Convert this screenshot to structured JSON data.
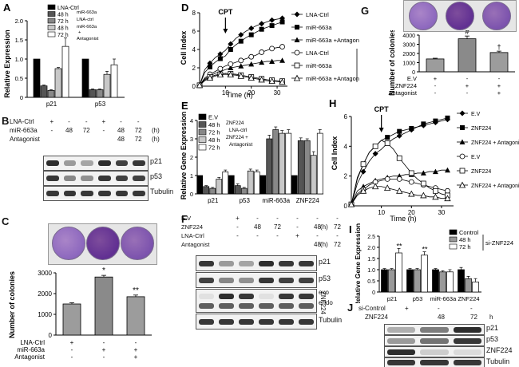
{
  "figure": {
    "panelA": {
      "letter": "A",
      "legend": [
        "LNA-Ctrl",
        "48 h",
        "72 h",
        "48 h",
        "72 h"
      ],
      "legend_notes": [
        "miR-663a",
        "LNA-ctrl",
        "miR-663a",
        "+",
        "Antagonist"
      ],
      "chart_data": {
        "type": "bar",
        "title": "",
        "ylabel": "Relative Expression",
        "xlabel": "",
        "categories": [
          "p21",
          "p53"
        ],
        "ylim": [
          0,
          2.0
        ],
        "yticks": [
          "0",
          "0.5",
          "1.0",
          "1.5",
          "2.0"
        ],
        "series": [
          {
            "name": "LNA-Ctrl",
            "values": [
              1.0,
              1.0
            ],
            "errors": [
              0,
              0
            ]
          },
          {
            "name": "48 h miR-663a",
            "values": [
              0.3,
              0.2
            ],
            "errors": [
              0.02,
              0.02
            ]
          },
          {
            "name": "72 h miR-663a",
            "values": [
              0.18,
              0.2
            ],
            "errors": [
              0.02,
              0.02
            ]
          },
          {
            "name": "48 h LNA-ctrl + miR-663a Antagonist",
            "values": [
              0.75,
              0.6
            ],
            "errors": [
              0.03,
              0.08
            ]
          },
          {
            "name": "72 h Antagonist",
            "values": [
              1.33,
              0.85
            ],
            "errors": [
              0.22,
              0.15
            ]
          }
        ],
        "colors": [
          "#000000",
          "#555555",
          "#888888",
          "#c8c8c8",
          "#ffffff"
        ]
      }
    },
    "panelB": {
      "letter": "B",
      "row_labels": [
        "LNA-Ctrl",
        "miR-663a",
        "Antagonist"
      ],
      "row_values": [
        [
          "+",
          "-",
          "-",
          "+",
          "-",
          "-"
        ],
        [
          "-",
          "48",
          "72",
          "-",
          "48",
          "72"
        ],
        [
          "",
          "",
          "",
          "",
          "48",
          "72"
        ]
      ],
      "units": [
        "(h)",
        "(h)"
      ],
      "band_labels": [
        "p21",
        "p53",
        "Tubulin"
      ],
      "p21_intensity": [
        0.95,
        0.4,
        0.35,
        0.95,
        0.85,
        0.9
      ],
      "p53_intensity": [
        0.9,
        0.5,
        0.45,
        0.9,
        0.85,
        0.85
      ],
      "tubulin_intensity": [
        0.9,
        0.9,
        0.9,
        0.9,
        0.9,
        0.9
      ]
    },
    "panelC": {
      "letter": "C",
      "plate_density": [
        0.55,
        0.95,
        0.7
      ],
      "stars": [
        "*",
        "**"
      ],
      "treatments": [
        [
          "LNA-Ctrl",
          "+",
          "-",
          "-"
        ],
        [
          "miR-663a",
          "-",
          "+",
          "+"
        ],
        [
          "Antagonist",
          "-",
          "-",
          "+"
        ]
      ],
      "chart_data": {
        "type": "bar",
        "ylabel": "Number of colonies",
        "categories": [
          "LNA-Ctrl",
          "miR-663a",
          "miR-663a + Antagonist"
        ],
        "values": [
          1500,
          2800,
          1850
        ],
        "errors": [
          60,
          80,
          80
        ],
        "ylim": [
          0,
          3000
        ],
        "yticks": [
          "0",
          "1000",
          "2000",
          "3000"
        ]
      }
    },
    "panelD": {
      "letter": "D",
      "arrow_label": "CPT",
      "group_label": "CPT",
      "legend": [
        "LNA-Ctrl",
        "miR-663a",
        "miR-663a +Antagonist",
        "LNA-Ctrl",
        "miR-663a",
        "miR-663a +Antagonist"
      ],
      "chart_data": {
        "type": "line",
        "xlabel": "Time (h)",
        "ylabel": "Cell Index",
        "xlim": [
          0,
          34
        ],
        "ylim": [
          0,
          8
        ],
        "xticks": [
          "10",
          "20",
          "30"
        ],
        "yticks": [
          "0",
          "2",
          "4",
          "6",
          "8"
        ],
        "x": [
          0,
          2,
          4,
          6,
          8,
          10,
          12,
          14,
          16,
          18,
          20,
          22,
          24,
          26,
          28,
          30,
          32
        ],
        "series": [
          {
            "name": "LNA-Ctrl",
            "values": [
              0.1,
              1.8,
              2.5,
              3.1,
              3.5,
              3.9,
              4.6,
              5.2,
              5.6,
              6.0,
              6.3,
              6.6,
              6.8,
              7.0,
              7.2,
              7.3,
              7.4
            ]
          },
          {
            "name": "miR-663a",
            "values": [
              0.1,
              1.5,
              2.1,
              2.6,
              3.0,
              3.3,
              4.0,
              4.5,
              4.9,
              5.3,
              5.6,
              5.9,
              6.2,
              6.4,
              6.6,
              6.8,
              7.0
            ]
          },
          {
            "name": "miR-663a +Antagonist",
            "values": [
              0.1,
              0.8,
              1.1,
              1.4,
              1.6,
              1.8,
              2.0,
              2.1,
              2.2,
              2.3,
              2.4,
              2.5,
              2.6,
              2.7,
              2.7,
              2.8,
              2.8
            ]
          },
          {
            "name": "LNA-Ctrl CPT",
            "values": [
              0.1,
              0.9,
              1.3,
              1.6,
              1.9,
              2.2,
              2.4,
              2.6,
              2.8,
              3.0,
              3.2,
              3.4,
              3.7,
              3.9,
              4.1,
              4.2,
              4.3
            ]
          },
          {
            "name": "miR-663a CPT",
            "values": [
              0.1,
              0.7,
              1.0,
              1.2,
              1.3,
              1.4,
              1.35,
              1.3,
              1.2,
              1.1,
              1.0,
              0.9,
              0.8,
              0.7,
              0.65,
              0.6,
              0.55
            ]
          },
          {
            "name": "miR-663a +Antagonist CPT",
            "values": [
              0.1,
              0.6,
              0.9,
              1.1,
              1.25,
              1.3,
              1.25,
              1.2,
              1.1,
              1.0,
              0.9,
              0.8,
              0.7,
              0.6,
              0.55,
              0.5,
              0.45
            ]
          }
        ]
      }
    },
    "panelE": {
      "letter": "E",
      "legend": [
        "E.V",
        "48 h",
        "72 h",
        "48 h",
        "72 h"
      ],
      "legend_notes": [
        "ZNF224",
        "LNA-ctrl",
        "ZNF224 +",
        "Antagonist"
      ],
      "chart_data": {
        "type": "bar",
        "ylabel": "Relative Gene Expression",
        "categories": [
          "p21",
          "p53",
          "miR-663a",
          "ZNF224"
        ],
        "ylim": [
          0,
          4
        ],
        "yticks": [
          "0",
          "1",
          "2",
          "3",
          "4"
        ],
        "series": [
          {
            "name": "E.V",
            "values": [
              1.0,
              1.0,
              1.0,
              1.0
            ],
            "errors": [
              0,
              0,
              0,
              0
            ]
          },
          {
            "name": "48 h ZNF224",
            "values": [
              0.4,
              0.45,
              3.0,
              2.9
            ],
            "errors": [
              0.05,
              0.1,
              0.2,
              0.15
            ]
          },
          {
            "name": "72 h ZNF224 LNA-ctrl",
            "values": [
              0.3,
              0.3,
              3.5,
              2.9
            ],
            "errors": [
              0.05,
              0.05,
              0.15,
              0.1
            ]
          },
          {
            "name": "48 h ZNF224 + Antagonist",
            "values": [
              0.8,
              1.25,
              3.3,
              2.1
            ],
            "errors": [
              0.1,
              0.1,
              0.15,
              0.2
            ]
          },
          {
            "name": "72 h Antagonist",
            "values": [
              1.2,
              1.2,
              3.3,
              3.3
            ],
            "errors": [
              0.1,
              0.1,
              0.2,
              0.2
            ]
          }
        ],
        "colors": [
          "#000000",
          "#555555",
          "#888888",
          "#c8c8c8",
          "#ffffff"
        ]
      }
    },
    "panelF": {
      "letter": "F",
      "row_labels": [
        "E.V",
        "ZNF224",
        "LNA-Ctrl",
        "Antagonist"
      ],
      "row_values": [
        [
          "+",
          "-",
          "-",
          "-",
          "-",
          "-"
        ],
        [
          "-",
          "48",
          "72",
          "-",
          "48",
          "72"
        ],
        [
          "-",
          "-",
          "-",
          "+",
          "-",
          "-"
        ],
        [
          "",
          "",
          "",
          "",
          "48",
          "72"
        ]
      ],
      "units": [
        "(h)",
        "(h)"
      ],
      "band_labels": [
        "p21",
        "p53",
        "exo",
        "endo",
        "Tubulin"
      ],
      "side_label": "ZNF224",
      "p21_intensity": [
        0.9,
        0.4,
        0.35,
        0.95,
        0.9,
        0.9
      ],
      "p53_intensity": [
        0.85,
        0.5,
        0.45,
        0.9,
        0.85,
        0.85
      ]
    },
    "panelG": {
      "letter": "G",
      "plate_density": [
        0.55,
        0.95,
        0.7
      ],
      "markers": [
        "#",
        "†"
      ],
      "treatments": [
        [
          "E.V",
          "+",
          "-",
          "-"
        ],
        [
          "ZNF224",
          "-",
          "+",
          "+"
        ],
        [
          "Antagonist",
          "-",
          "-",
          "+"
        ]
      ],
      "chart_data": {
        "type": "bar",
        "ylabel": "Number of colonies",
        "categories": [
          "E.V",
          "ZNF224",
          "ZNF224 + Antagonist"
        ],
        "values": [
          1400,
          3600,
          2100
        ],
        "errors": [
          80,
          300,
          150
        ],
        "ylim": [
          0,
          4000
        ],
        "yticks": [
          "0",
          "1000",
          "2000",
          "3000",
          "4000"
        ]
      }
    },
    "panelH": {
      "letter": "H",
      "arrow_label": "CPT",
      "group_label": "CPT",
      "legend": [
        "E.V",
        "ZNF224",
        "ZNF224 + Antagonist",
        "E.V",
        "ZNF224",
        "ZNF224 + Antagonist"
      ],
      "chart_data": {
        "type": "line",
        "xlabel": "Time (h)",
        "ylabel": "Cell Index",
        "xlim": [
          0,
          34
        ],
        "ylim": [
          0,
          6
        ],
        "xticks": [
          "10",
          "20",
          "30"
        ],
        "yticks": [
          "0",
          "2",
          "4",
          "6"
        ],
        "x": [
          0,
          2,
          4,
          6,
          8,
          10,
          12,
          14,
          16,
          18,
          20,
          22,
          24,
          26,
          28,
          30,
          32
        ],
        "series": [
          {
            "name": "E.V",
            "values": [
              0.1,
              1.5,
              2.3,
              3.0,
              3.5,
              3.8,
              4.2,
              4.5,
              4.7,
              4.9,
              5.1,
              5.3,
              5.4,
              5.5,
              5.6,
              5.7,
              5.8
            ]
          },
          {
            "name": "ZNF224",
            "values": [
              0.1,
              1.9,
              2.8,
              3.6,
              4.0,
              4.4,
              4.6,
              4.8,
              5.0,
              5.1,
              5.2,
              5.3,
              5.5,
              5.6,
              5.7,
              5.8,
              5.9
            ]
          },
          {
            "name": "ZNF224 + Antagonist",
            "values": [
              0.1,
              1.0,
              1.3,
              1.5,
              1.7,
              1.8,
              1.9,
              2.0,
              2.0,
              2.1,
              2.1,
              2.2,
              2.2,
              2.3,
              2.3,
              2.4,
              2.4
            ]
          },
          {
            "name": "E.V CPT",
            "values": [
              0.1,
              0.8,
              1.1,
              1.4,
              1.6,
              1.7,
              1.8,
              1.8,
              1.8,
              1.7,
              1.6,
              1.5,
              1.4,
              1.3,
              1.2,
              1.1,
              1.0
            ]
          },
          {
            "name": "ZNF224 CPT",
            "values": [
              0.1,
              1.8,
              2.8,
              3.6,
              4.0,
              4.4,
              4.2,
              3.8,
              3.2,
              2.7,
              2.2,
              1.8,
              1.5,
              1.2,
              1.0,
              0.8,
              0.7
            ]
          },
          {
            "name": "ZNF224 + Antagonist CPT",
            "values": [
              0.1,
              0.7,
              1.0,
              1.2,
              1.3,
              1.3,
              1.2,
              1.1,
              1.0,
              0.9,
              0.8,
              0.7,
              0.7,
              0.6,
              0.6,
              0.5,
              0.5
            ]
          }
        ]
      }
    },
    "panelI": {
      "letter": "I",
      "legend": [
        "Control",
        "48 h",
        "72 h"
      ],
      "group_label": "si-ZNF224",
      "stars": [
        "**",
        "**"
      ],
      "chart_data": {
        "type": "bar",
        "ylabel": "Relative Gene Expression",
        "categories": [
          "p21",
          "p53",
          "miR-663a",
          "ZNF224"
        ],
        "ylim": [
          0,
          2.5
        ],
        "yticks": [
          "0",
          "0.5",
          "1.0",
          "1.5",
          "2.0",
          "2.5"
        ],
        "series": [
          {
            "name": "Control",
            "values": [
              1.0,
              1.0,
              1.0,
              1.0
            ],
            "errors": [
              0.05,
              0.05,
              0.05,
              0.1
            ]
          },
          {
            "name": "48 h",
            "values": [
              1.0,
              1.0,
              0.9,
              0.6
            ],
            "errors": [
              0.05,
              0.05,
              0.05,
              0.1
            ]
          },
          {
            "name": "72 h",
            "values": [
              1.75,
              1.65,
              0.9,
              0.45
            ],
            "errors": [
              0.2,
              0.15,
              0.1,
              0.15
            ]
          }
        ],
        "colors": [
          "#000000",
          "#999999",
          "#ffffff"
        ]
      }
    },
    "panelJ": {
      "letter": "J",
      "row_labels": [
        "Control",
        "ZNF224"
      ],
      "prefix": "si-",
      "row_values": [
        [
          "+",
          "-",
          "-"
        ],
        [
          "",
          "48",
          "72"
        ]
      ],
      "unit": "h",
      "band_labels": [
        "p21",
        "p53",
        "ZNF224",
        "Tubulin"
      ],
      "p21_intensity": [
        0.3,
        0.55,
        0.95
      ],
      "p53_intensity": [
        0.4,
        0.6,
        0.9
      ],
      "znf_intensity": [
        0.95,
        0.15,
        0.08
      ]
    }
  }
}
